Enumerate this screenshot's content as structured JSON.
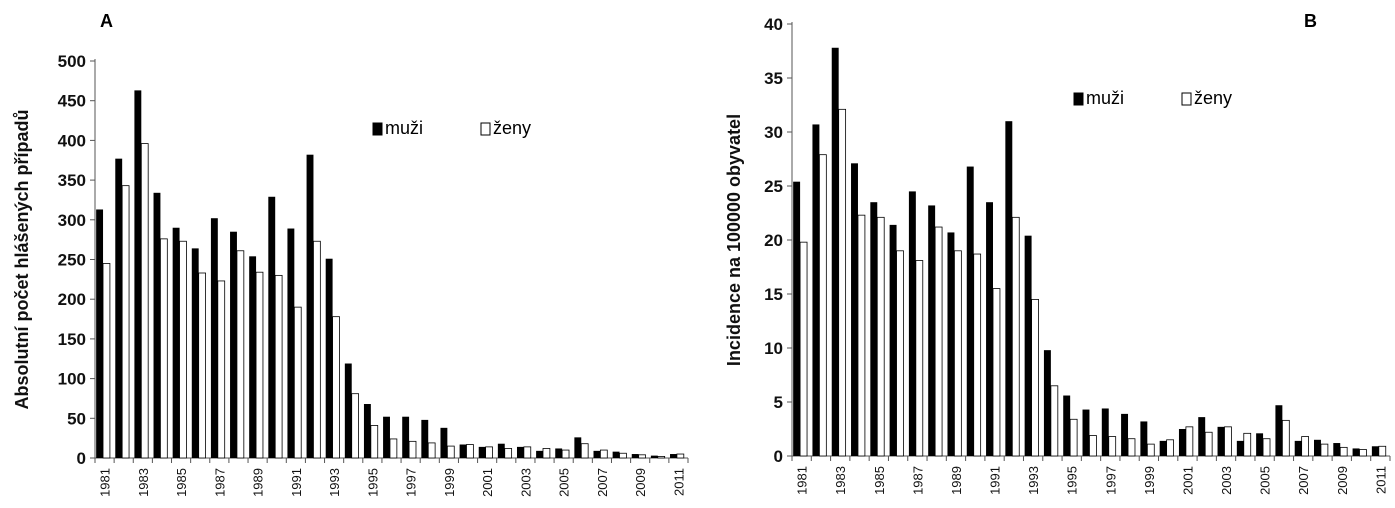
{
  "chart_data": [
    {
      "type": "bar",
      "panel_label": "A",
      "ylabel": "Absolutní počet hlášených případů",
      "xlabel": "",
      "ylim": [
        0,
        500
      ],
      "yticks": [
        0,
        50,
        100,
        150,
        200,
        250,
        300,
        350,
        400,
        450,
        500
      ],
      "xtick_labels": [
        "1981",
        "1983",
        "1985",
        "1987",
        "1989",
        "1991",
        "1993",
        "1995",
        "1997",
        "1999",
        "2001",
        "2003",
        "2005",
        "2007",
        "2009",
        "2011"
      ],
      "categories": [
        "1981",
        "1982",
        "1983",
        "1984",
        "1985",
        "1986",
        "1987",
        "1988",
        "1989",
        "1990",
        "1991",
        "1992",
        "1993",
        "1994",
        "1995",
        "1996",
        "1997",
        "1998",
        "1999",
        "2000",
        "2001",
        "2002",
        "2003",
        "2004",
        "2005",
        "2006",
        "2007",
        "2008",
        "2009",
        "2010",
        "2011"
      ],
      "legend_position": "top-right",
      "series": [
        {
          "name": "muži",
          "color": "#000000",
          "values": [
            313,
            377,
            463,
            334,
            290,
            264,
            302,
            285,
            254,
            329,
            289,
            382,
            251,
            119,
            68,
            52,
            52,
            48,
            38,
            17,
            14,
            18,
            14,
            9,
            12,
            26,
            9,
            8,
            5,
            3,
            5
          ]
        },
        {
          "name": "ženy",
          "color": "#ffffff",
          "values": [
            245,
            343,
            396,
            276,
            273,
            233,
            223,
            261,
            234,
            230,
            190,
            273,
            178,
            81,
            41,
            24,
            21,
            19,
            15,
            17,
            14,
            12,
            14,
            12,
            10,
            18,
            10,
            6,
            4,
            2,
            5
          ]
        }
      ]
    },
    {
      "type": "bar",
      "panel_label": "B",
      "ylabel": "Incidence na 100000 obyvatel",
      "xlabel": "",
      "ylim": [
        0,
        40
      ],
      "yticks": [
        0,
        5,
        10,
        15,
        20,
        25,
        30,
        35,
        40
      ],
      "xtick_labels": [
        "1981",
        "1983",
        "1985",
        "1987",
        "1989",
        "1991",
        "1993",
        "1995",
        "1997",
        "1999",
        "2001",
        "2003",
        "2005",
        "2007",
        "2009",
        "2011"
      ],
      "categories": [
        "1981",
        "1982",
        "1983",
        "1984",
        "1985",
        "1986",
        "1987",
        "1988",
        "1989",
        "1990",
        "1991",
        "1992",
        "1993",
        "1994",
        "1995",
        "1996",
        "1997",
        "1998",
        "1999",
        "2000",
        "2001",
        "2002",
        "2003",
        "2004",
        "2005",
        "2006",
        "2007",
        "2008",
        "2009",
        "2010",
        "2011"
      ],
      "legend_position": "top-right",
      "series": [
        {
          "name": "muži",
          "color": "#000000",
          "values": [
            25.4,
            30.7,
            37.8,
            27.1,
            23.5,
            21.4,
            24.5,
            23.2,
            20.7,
            26.8,
            23.5,
            31.0,
            20.4,
            9.8,
            5.6,
            4.3,
            4.4,
            3.9,
            3.2,
            1.4,
            2.5,
            3.6,
            2.7,
            1.4,
            2.1,
            4.7,
            1.4,
            1.5,
            1.2,
            0.7,
            0.9
          ]
        },
        {
          "name": "ženy",
          "color": "#ffffff",
          "values": [
            19.8,
            27.9,
            32.1,
            22.3,
            22.1,
            19.0,
            18.1,
            21.2,
            19.0,
            18.7,
            15.5,
            22.1,
            14.5,
            6.5,
            3.4,
            1.9,
            1.8,
            1.6,
            1.1,
            1.5,
            2.7,
            2.2,
            2.7,
            2.1,
            1.6,
            3.3,
            1.8,
            1.1,
            0.8,
            0.6,
            0.9
          ]
        }
      ]
    }
  ]
}
